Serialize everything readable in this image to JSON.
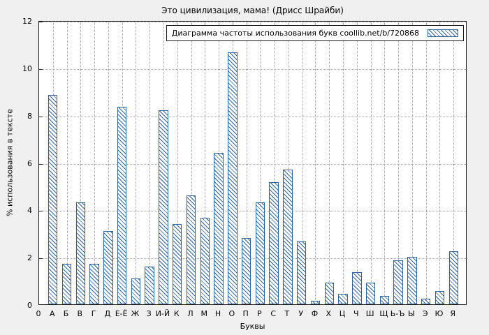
{
  "chart_data": {
    "type": "bar",
    "title": "Это цивилизация, мама! (Дрисс Шрайби)",
    "legend": "Диаграмма частоты использования букв coollib.net/b/720868",
    "legend_position": "top-right",
    "xlabel": "Буквы",
    "ylabel": "% использования в тексте",
    "origin_tick_label": "0",
    "categories": [
      "А",
      "Б",
      "В",
      "Г",
      "Д",
      "Е-Ё",
      "Ж",
      "З",
      "И-Й",
      "К",
      "Л",
      "М",
      "Н",
      "О",
      "П",
      "Р",
      "С",
      "Т",
      "У",
      "Ф",
      "Х",
      "Ц",
      "Ч",
      "Ш",
      "Щ",
      "Ь-Ъ",
      "Ы",
      "Э",
      "Ю",
      "Я"
    ],
    "values": [
      8.85,
      1.7,
      4.3,
      1.7,
      3.1,
      8.35,
      1.1,
      1.6,
      8.2,
      3.4,
      4.6,
      3.65,
      6.4,
      10.65,
      2.8,
      4.3,
      5.15,
      5.7,
      2.65,
      0.15,
      0.9,
      0.45,
      1.35,
      0.9,
      0.35,
      1.85,
      2.0,
      0.25,
      0.55,
      2.25
    ],
    "ylim": [
      0,
      12
    ],
    "yticks": [
      0,
      2,
      4,
      6,
      8,
      10,
      12
    ],
    "grid": true,
    "colors": {
      "bar_outline": "#31639c",
      "bar_hatch": "#31639c",
      "bar_fill": "#ffffff",
      "figure_background": "#f0f0f0",
      "plot_background": "#ffffff",
      "grid": "#9f9f9f",
      "text": "#000000"
    }
  }
}
